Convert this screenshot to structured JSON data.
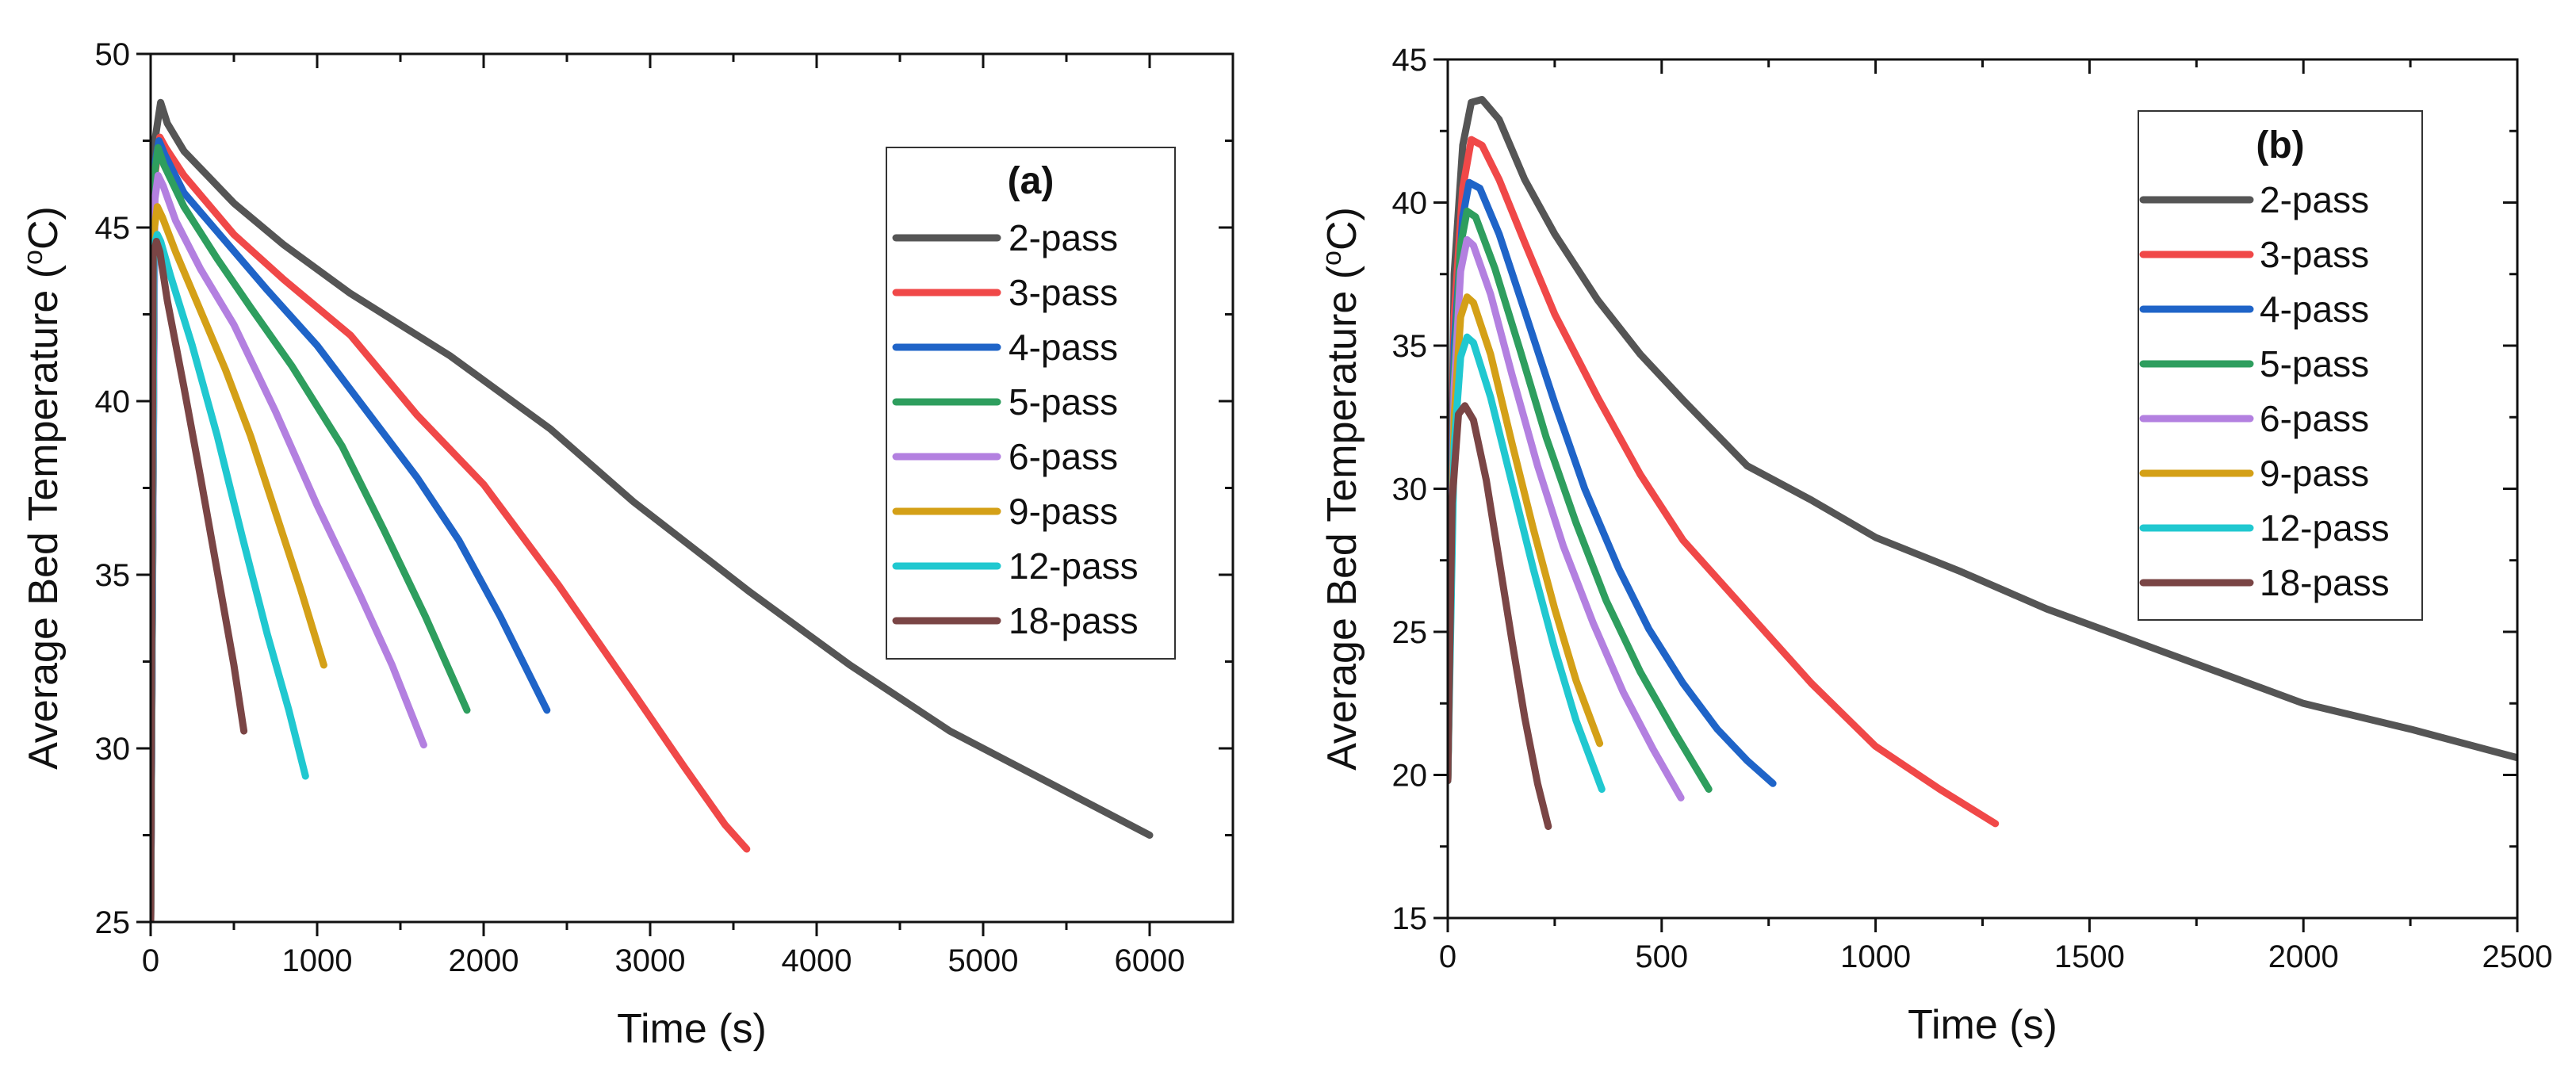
{
  "chart_data": [
    {
      "type": "line",
      "panel_label": "(a)",
      "xlabel": "Time (s)",
      "ylabel": "Average Bed Temperature (",
      "ylabel_superscript": "o",
      "ylabel_suffix": "C)",
      "xlim": [
        0,
        6500
      ],
      "ylim": [
        25,
        50
      ],
      "xticks": [
        0,
        1000,
        2000,
        3000,
        4000,
        5000,
        6000
      ],
      "xtick_labels": [
        "0",
        "1000",
        "2000",
        "3000",
        "4000",
        "5000",
        "6000"
      ],
      "yticks": [
        25,
        30,
        35,
        40,
        45,
        50
      ],
      "ytick_labels": [
        "25",
        "30",
        "35",
        "40",
        "45",
        "50"
      ],
      "grid": false,
      "legend_position": "top-right",
      "series": [
        {
          "name": "2-pass",
          "color": "#555555",
          "x": [
            0,
            25,
            60,
            100,
            200,
            500,
            800,
            1200,
            1800,
            2400,
            2900,
            3600,
            4200,
            4800,
            5400,
            6000
          ],
          "y": [
            25,
            47.5,
            48.6,
            48,
            47.2,
            45.7,
            44.5,
            43.1,
            41.3,
            39.2,
            37.1,
            34.5,
            32.4,
            30.5,
            29,
            27.5
          ]
        },
        {
          "name": "3-pass",
          "color": "#f04848",
          "x": [
            0,
            25,
            55,
            90,
            200,
            500,
            800,
            1200,
            1600,
            2000,
            2450,
            2900,
            3200,
            3450,
            3580
          ],
          "y": [
            25,
            46.5,
            47.6,
            47.3,
            46.5,
            44.8,
            43.5,
            41.9,
            39.6,
            37.6,
            34.7,
            31.6,
            29.5,
            27.8,
            27.1
          ]
        },
        {
          "name": "4-pass",
          "color": "#1f64c8",
          "x": [
            0,
            25,
            50,
            85,
            200,
            450,
            700,
            1000,
            1300,
            1600,
            1850,
            2100,
            2380
          ],
          "y": [
            25,
            46.8,
            47.5,
            47.1,
            46,
            44.6,
            43.2,
            41.6,
            39.7,
            37.8,
            36,
            33.8,
            31.1
          ]
        },
        {
          "name": "5-pass",
          "color": "#2e9e5e",
          "x": [
            0,
            25,
            45,
            80,
            200,
            400,
            600,
            850,
            1150,
            1400,
            1650,
            1900
          ],
          "y": [
            25,
            46.6,
            47.3,
            46.8,
            45.6,
            44.1,
            42.7,
            41,
            38.7,
            36.3,
            33.8,
            31.1
          ]
        },
        {
          "name": "6-pass",
          "color": "#b380e0",
          "x": [
            0,
            25,
            45,
            75,
            150,
            300,
            500,
            750,
            1000,
            1250,
            1450,
            1640
          ],
          "y": [
            25,
            45.8,
            46.5,
            46.2,
            45.2,
            43.8,
            42.2,
            39.7,
            37,
            34.5,
            32.4,
            30.1
          ]
        },
        {
          "name": "9-pass",
          "color": "#d4a017",
          "x": [
            0,
            20,
            40,
            70,
            150,
            300,
            450,
            600,
            750,
            900,
            1040
          ],
          "y": [
            25,
            44.9,
            45.6,
            45.3,
            44.3,
            42.6,
            40.9,
            39,
            36.8,
            34.6,
            32.4
          ]
        },
        {
          "name": "12-pass",
          "color": "#20c8d0",
          "x": [
            0,
            20,
            40,
            60,
            120,
            250,
            400,
            550,
            700,
            830,
            930
          ],
          "y": [
            25,
            44.5,
            44.8,
            44.6,
            43.6,
            41.6,
            39,
            36.1,
            33.3,
            31.1,
            29.2
          ]
        },
        {
          "name": "18-pass",
          "color": "#7a4545",
          "x": [
            0,
            15,
            35,
            55,
            100,
            200,
            300,
            400,
            500,
            560
          ],
          "y": [
            25,
            44.2,
            44.6,
            44.3,
            42.9,
            40.4,
            37.8,
            35.1,
            32.4,
            30.5
          ]
        }
      ]
    },
    {
      "type": "line",
      "panel_label": "(b)",
      "xlabel": "Time (s)",
      "ylabel": "Average Bed Temperature (",
      "ylabel_superscript": "o",
      "ylabel_suffix": "C)",
      "xlim": [
        0,
        2500
      ],
      "ylim": [
        15,
        45
      ],
      "xticks": [
        0,
        500,
        1000,
        1500,
        2000,
        2500
      ],
      "xtick_labels": [
        "0",
        "500",
        "1000",
        "1500",
        "2000",
        "2500"
      ],
      "yticks": [
        15,
        20,
        25,
        30,
        35,
        40,
        45
      ],
      "ytick_labels": [
        "15",
        "20",
        "25",
        "30",
        "35",
        "40",
        "45"
      ],
      "grid": false,
      "legend_position": "top-right",
      "series": [
        {
          "name": "2-pass",
          "color": "#555555",
          "x": [
            0,
            15,
            35,
            55,
            80,
            120,
            180,
            250,
            350,
            450,
            550,
            700,
            850,
            1000,
            1200,
            1400,
            1600,
            1800,
            2000,
            2250,
            2500
          ],
          "y": [
            19.8,
            37.5,
            42,
            43.5,
            43.6,
            42.9,
            40.8,
            38.9,
            36.6,
            34.7,
            33.1,
            30.8,
            29.6,
            28.3,
            27.1,
            25.8,
            24.7,
            23.6,
            22.5,
            21.6,
            20.6
          ]
        },
        {
          "name": "3-pass",
          "color": "#f04848",
          "x": [
            0,
            15,
            35,
            55,
            80,
            120,
            180,
            250,
            350,
            450,
            550,
            700,
            850,
            1000,
            1150,
            1280
          ],
          "y": [
            19.8,
            36,
            40.5,
            42.2,
            42,
            40.8,
            38.6,
            36.1,
            33.2,
            30.5,
            28.2,
            25.7,
            23.2,
            21,
            19.5,
            18.3
          ]
        },
        {
          "name": "4-pass",
          "color": "#1f64c8",
          "x": [
            0,
            15,
            35,
            50,
            75,
            120,
            180,
            250,
            320,
            400,
            470,
            550,
            630,
            700,
            760
          ],
          "y": [
            19.8,
            35,
            39.5,
            40.7,
            40.5,
            38.9,
            36.2,
            33,
            30,
            27.2,
            25.1,
            23.2,
            21.6,
            20.5,
            19.7
          ]
        },
        {
          "name": "5-pass",
          "color": "#2e9e5e",
          "x": [
            0,
            15,
            30,
            45,
            65,
            110,
            170,
            230,
            300,
            370,
            450,
            530,
            610
          ],
          "y": [
            19.8,
            34,
            38.5,
            39.7,
            39.5,
            37.7,
            34.8,
            31.8,
            28.8,
            26.1,
            23.6,
            21.5,
            19.5
          ]
        },
        {
          "name": "6-pass",
          "color": "#b380e0",
          "x": [
            0,
            15,
            30,
            45,
            60,
            100,
            150,
            210,
            270,
            340,
            410,
            480,
            545
          ],
          "y": [
            19.8,
            33.5,
            37.6,
            38.7,
            38.5,
            36.8,
            34,
            30.8,
            28,
            25.3,
            22.9,
            20.9,
            19.2
          ]
        },
        {
          "name": "9-pass",
          "color": "#d4a017",
          "x": [
            0,
            15,
            30,
            45,
            60,
            100,
            150,
            200,
            250,
            300,
            355
          ],
          "y": [
            19.8,
            32.5,
            36,
            36.7,
            36.5,
            34.7,
            31.6,
            28.6,
            25.8,
            23.3,
            21.1
          ]
        },
        {
          "name": "12-pass",
          "color": "#20c8d0",
          "x": [
            0,
            15,
            30,
            45,
            60,
            100,
            150,
            200,
            250,
            300,
            360
          ],
          "y": [
            19.8,
            31.5,
            34.6,
            35.3,
            35.1,
            33.2,
            30.2,
            27.2,
            24.4,
            21.9,
            19.5
          ]
        },
        {
          "name": "18-pass",
          "color": "#7a4545",
          "x": [
            0,
            10,
            25,
            40,
            60,
            90,
            120,
            150,
            180,
            210,
            235
          ],
          "y": [
            19.8,
            29.5,
            32.6,
            32.9,
            32.4,
            30.3,
            27.5,
            24.7,
            22,
            19.7,
            18.2
          ]
        }
      ]
    }
  ]
}
